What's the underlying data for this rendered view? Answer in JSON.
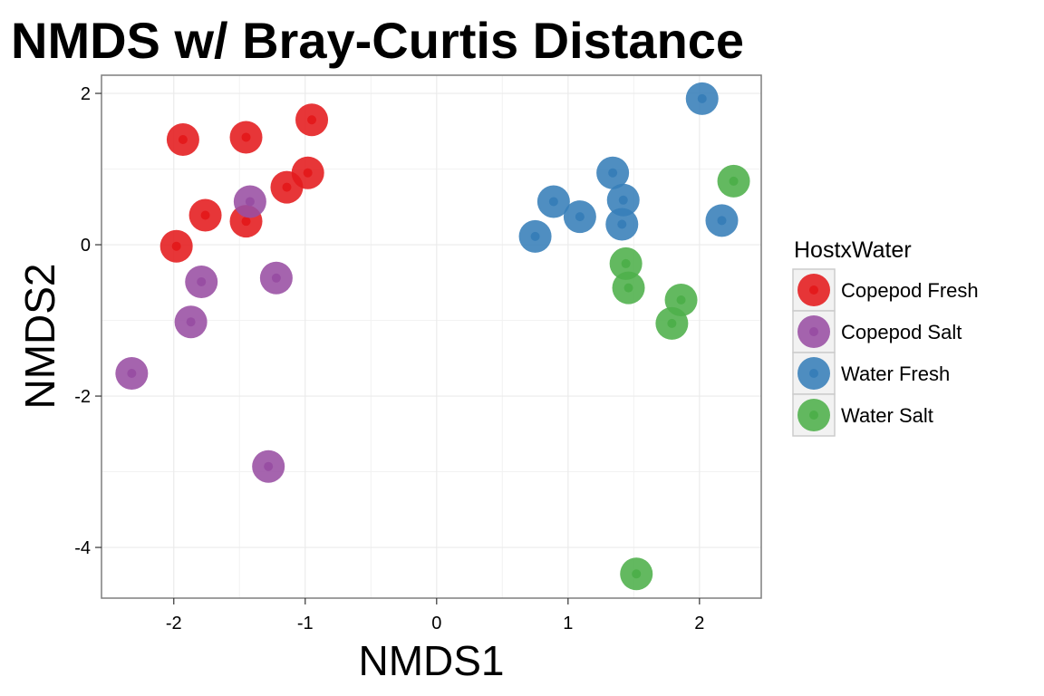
{
  "chart_data": {
    "type": "scatter",
    "title": "NMDS w/ Bray-Curtis Distance",
    "xlabel": "NMDS1",
    "ylabel": "NMDS2",
    "xlim": [
      -2.55,
      2.47
    ],
    "ylim": [
      -4.67,
      2.24
    ],
    "xticks": [
      -2,
      -1,
      0,
      1,
      2
    ],
    "yticks": [
      2,
      0,
      -2,
      -4
    ],
    "tick_labels_x": [
      "-2",
      "-1",
      "0",
      "1",
      "2"
    ],
    "tick_labels_y": [
      "2",
      "0",
      "-2",
      "-4"
    ],
    "grid": true,
    "legend": {
      "title": "HostxWater",
      "position": "right"
    },
    "series": [
      {
        "name": "Copepod Fresh",
        "color": "#E41A1C",
        "points": [
          {
            "x": -1.93,
            "y": 1.39
          },
          {
            "x": -1.45,
            "y": 1.42
          },
          {
            "x": -0.95,
            "y": 1.65
          },
          {
            "x": -0.98,
            "y": 0.95
          },
          {
            "x": -1.14,
            "y": 0.76
          },
          {
            "x": -1.76,
            "y": 0.39
          },
          {
            "x": -1.45,
            "y": 0.31
          },
          {
            "x": -1.98,
            "y": -0.02
          }
        ]
      },
      {
        "name": "Copepod Salt",
        "color": "#984EA3",
        "points": [
          {
            "x": -1.42,
            "y": 0.57
          },
          {
            "x": -1.79,
            "y": -0.49
          },
          {
            "x": -1.22,
            "y": -0.44
          },
          {
            "x": -1.87,
            "y": -1.02
          },
          {
            "x": -2.32,
            "y": -1.7
          },
          {
            "x": -1.28,
            "y": -2.93
          }
        ]
      },
      {
        "name": "Water Fresh",
        "color": "#377EB8",
        "points": [
          {
            "x": 2.02,
            "y": 1.93
          },
          {
            "x": 1.34,
            "y": 0.95
          },
          {
            "x": 0.89,
            "y": 0.57
          },
          {
            "x": 1.42,
            "y": 0.59
          },
          {
            "x": 1.09,
            "y": 0.37
          },
          {
            "x": 1.41,
            "y": 0.27
          },
          {
            "x": 0.75,
            "y": 0.11
          },
          {
            "x": 2.17,
            "y": 0.32
          }
        ]
      },
      {
        "name": "Water Salt",
        "color": "#4DAF4A",
        "points": [
          {
            "x": 2.26,
            "y": 0.84
          },
          {
            "x": 1.44,
            "y": -0.25
          },
          {
            "x": 1.46,
            "y": -0.57
          },
          {
            "x": 1.86,
            "y": -0.73
          },
          {
            "x": 1.79,
            "y": -1.04
          },
          {
            "x": 1.52,
            "y": -4.35
          }
        ]
      }
    ]
  }
}
